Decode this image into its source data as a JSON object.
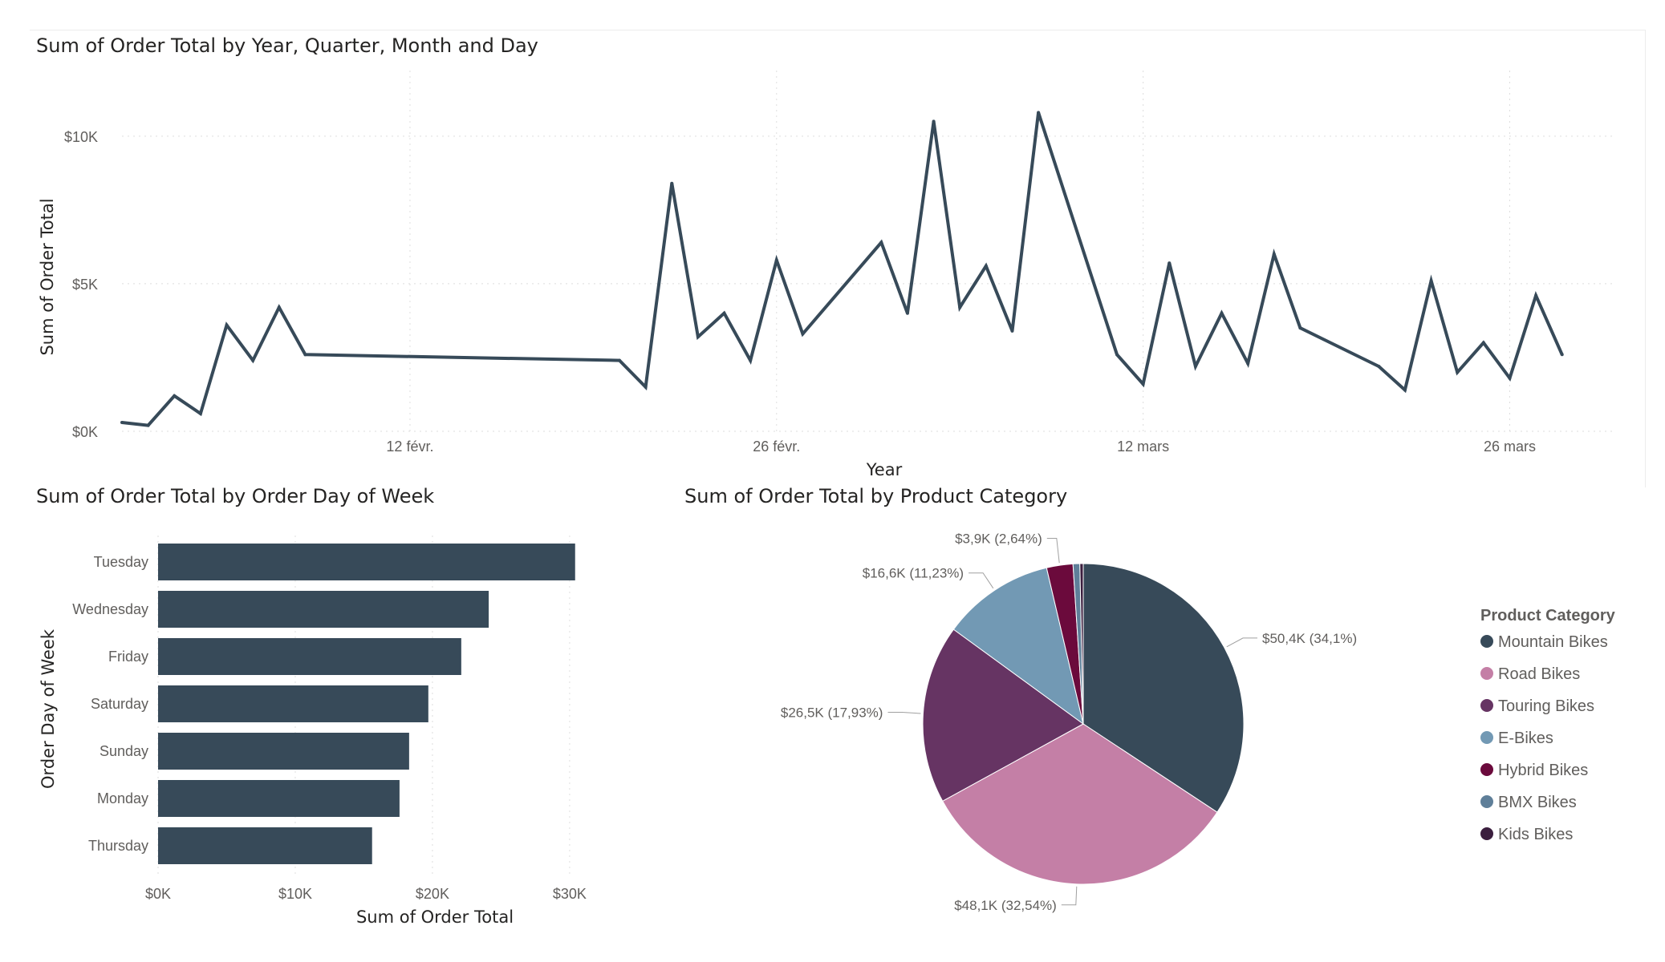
{
  "charts": {
    "line": {
      "title": "Sum of Order Total by Year, Quarter, Month and Day"
    },
    "bar": {
      "title": "Sum of Order Total by Order Day of Week"
    },
    "pie": {
      "title": "Sum of Order Total by Product Category"
    }
  },
  "chart_data": [
    {
      "type": "line",
      "title": "Sum of Order Total by Year, Quarter, Month and Day",
      "xlabel": "Year",
      "ylabel": "Sum of Order Total",
      "color": "#374a59",
      "grid": true,
      "x_ticks": [
        "12 févr.",
        "26 févr.",
        "12 mars",
        "26 mars"
      ],
      "y_ticks": [
        "$0K",
        "$5K",
        "$10K"
      ],
      "ylim": [
        0,
        11000
      ],
      "xlim": [
        "2023-02-01",
        "2023-03-30"
      ],
      "x": [
        "2023-02-01",
        "2023-02-02",
        "2023-02-03",
        "2023-02-04",
        "2023-02-05",
        "2023-02-06",
        "2023-02-07",
        "2023-02-08",
        "2023-02-20",
        "2023-02-21",
        "2023-02-22",
        "2023-02-23",
        "2023-02-24",
        "2023-02-25",
        "2023-02-26",
        "2023-02-27",
        "2023-03-02",
        "2023-03-03",
        "2023-03-04",
        "2023-03-05",
        "2023-03-06",
        "2023-03-07",
        "2023-03-08",
        "2023-03-11",
        "2023-03-12",
        "2023-03-13",
        "2023-03-14",
        "2023-03-15",
        "2023-03-16",
        "2023-03-17",
        "2023-03-18",
        "2023-03-21",
        "2023-03-22",
        "2023-03-23",
        "2023-03-24",
        "2023-03-25",
        "2023-03-26",
        "2023-03-27",
        "2023-03-28"
      ],
      "y": [
        300,
        200,
        1200,
        600,
        3600,
        2400,
        4200,
        2600,
        2400,
        1500,
        8400,
        3200,
        4000,
        2400,
        5800,
        3300,
        6400,
        4000,
        10500,
        4200,
        5600,
        3400,
        10800,
        2600,
        1600,
        5700,
        2200,
        4000,
        2300,
        6000,
        3500,
        2200,
        1400,
        5100,
        2000,
        3000,
        1800,
        4600,
        2600
      ]
    },
    {
      "type": "bar",
      "orientation": "horizontal",
      "title": "Sum of Order Total by Order Day of Week",
      "xlabel": "Sum of Order Total",
      "ylabel": "Order Day of Week",
      "color": "#374a59",
      "x_ticks": [
        "$0K",
        "$10K",
        "$20K",
        "$30K"
      ],
      "xlim": [
        0,
        31000
      ],
      "categories": [
        "Tuesday",
        "Wednesday",
        "Friday",
        "Saturday",
        "Sunday",
        "Monday",
        "Thursday"
      ],
      "values": [
        30400,
        24100,
        22100,
        19700,
        18300,
        17600,
        15600
      ]
    },
    {
      "type": "pie",
      "title": "Sum of Order Total by Product Category",
      "legend_title": "Product Category",
      "legend_position": "right",
      "slices": [
        {
          "label": "Mountain Bikes",
          "value": 50.4,
          "percent": 34.1,
          "color": "#374a59",
          "data_label": "$50,4K (34,1%)"
        },
        {
          "label": "Road Bikes",
          "value": 48.1,
          "percent": 32.54,
          "color": "#c47fa6",
          "data_label": "$48,1K (32,54%)"
        },
        {
          "label": "Touring Bikes",
          "value": 26.5,
          "percent": 17.93,
          "color": "#663463",
          "data_label": "$26,5K (17,93%)"
        },
        {
          "label": "E-Bikes",
          "value": 16.6,
          "percent": 11.23,
          "color": "#7299b4",
          "data_label": "$16,6K (11,23%)"
        },
        {
          "label": "Hybrid Bikes",
          "value": 3.9,
          "percent": 2.64,
          "color": "#6b0a3c",
          "data_label": "$3,9K (2,64%)"
        },
        {
          "label": "BMX Bikes",
          "value": 1.0,
          "percent": 0.7,
          "color": "#5f7f99",
          "data_label": ""
        },
        {
          "label": "Kids Bikes",
          "value": 0.5,
          "percent": 0.3,
          "color": "#3b1e3e",
          "data_label": ""
        }
      ]
    }
  ]
}
